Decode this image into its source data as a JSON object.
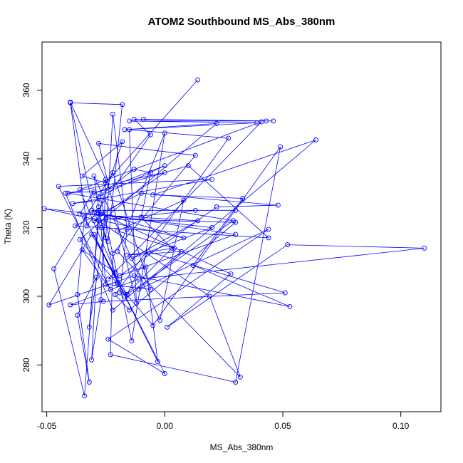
{
  "chart_data": {
    "type": "line",
    "title": "ATOM2 Southbound MS_Abs_380nm",
    "xlabel": "MS_Abs_380nm",
    "ylabel": "Theta (K)",
    "xlim": [
      -0.052,
      0.117
    ],
    "ylim": [
      266.4,
      374.0
    ],
    "x_ticks": [
      -0.05,
      0.0,
      0.05,
      0.1
    ],
    "x_tick_labels": [
      "-0.05",
      "0.00",
      "0.05",
      "0.10"
    ],
    "y_ticks": [
      280,
      300,
      320,
      340,
      360
    ],
    "y_tick_labels": [
      "280",
      "300",
      "320",
      "340",
      "360"
    ],
    "grid": false,
    "marker": "open-circle",
    "colors": {
      "series": "#0000ff",
      "frame": "#000000",
      "background": "#ffffff"
    },
    "series": [
      {
        "points": [
          [
            0.014,
            363.0
          ],
          [
            -0.025,
            333.0
          ],
          [
            -0.035,
            335.0
          ],
          [
            -0.018,
            345.0
          ],
          [
            -0.028,
            324.0
          ],
          [
            -0.02,
            304.0
          ],
          [
            -0.034,
            323.0
          ],
          [
            -0.037,
            300.5
          ],
          [
            -0.032,
            275.0
          ],
          [
            -0.037,
            294.5
          ],
          [
            -0.029,
            305.5
          ],
          [
            -0.031,
            281.5
          ],
          [
            -0.027,
            299.0
          ],
          [
            -0.025,
            334.0
          ],
          [
            -0.04,
            356.5
          ],
          [
            -0.03,
            324.5
          ],
          [
            -0.027,
            320.0
          ],
          [
            -0.025,
            303.5
          ],
          [
            -0.006,
            302.0
          ],
          [
            -0.022,
            336.0
          ],
          [
            -0.047,
            308.0
          ],
          [
            -0.034,
            271.0
          ],
          [
            -0.028,
            325.0
          ],
          [
            -0.02,
            303.5
          ],
          [
            -0.016,
            300.5
          ],
          [
            -0.019,
            301.0
          ],
          [
            -0.016,
            319.5
          ],
          [
            -0.022,
            353.0
          ],
          [
            -0.025,
            317.0
          ],
          [
            -0.024,
            316.0
          ],
          [
            -0.018,
            355.8
          ],
          [
            -0.04,
            356.3
          ],
          [
            -0.033,
            320.5
          ],
          [
            -0.006,
            347.0
          ],
          [
            -0.013,
            351.5
          ],
          [
            0.043,
            351.0
          ],
          [
            -0.009,
            351.5
          ],
          [
            0.046,
            351.0
          ],
          [
            -0.015,
            351.0
          ],
          [
            0.039,
            350.5
          ],
          [
            -0.017,
            348.5
          ],
          [
            0.022,
            350.3
          ],
          [
            -0.036,
            316.5
          ],
          [
            -0.005,
            291.5
          ],
          [
            0.049,
            343.5
          ],
          [
            0.03,
            275.0
          ],
          [
            -0.023,
            283.0
          ],
          [
            -0.022,
            312.5
          ],
          [
            0.013,
            341.0
          ],
          [
            -0.028,
            344.5
          ],
          [
            -0.012,
            298.0
          ],
          [
            -0.015,
            348.5
          ],
          [
            0.027,
            346.0
          ],
          [
            -0.021,
            300.5
          ],
          [
            -0.015,
            296.0
          ],
          [
            0.03,
            321.5
          ],
          [
            -0.025,
            322.5
          ],
          [
            -0.032,
            291.0
          ],
          [
            -0.028,
            322.0
          ],
          [
            0.019,
            300.0
          ],
          [
            0.032,
            276.5
          ],
          [
            -0.02,
            313.0
          ],
          [
            0.0,
            347.5
          ],
          [
            -0.014,
            287.0
          ],
          [
            -0.027,
            328.0
          ],
          [
            -0.039,
            327.0
          ],
          [
            0.02,
            334.0
          ],
          [
            -0.045,
            332.0
          ],
          [
            -0.023,
            302.0
          ],
          [
            -0.035,
            313.5
          ],
          [
            -0.021,
            307.0
          ],
          [
            -0.036,
            331.0
          ],
          [
            0.041,
            350.8
          ],
          [
            -0.024,
            305.0
          ],
          [
            -0.008,
            308.5
          ],
          [
            -0.003,
            281.0
          ],
          [
            -0.03,
            318.0
          ],
          [
            0.0,
            277.5
          ],
          [
            -0.024,
            287.5
          ],
          [
            0.044,
            319.5
          ],
          [
            -0.011,
            302.0
          ],
          [
            0.064,
            345.5
          ],
          [
            -0.005,
            329.5
          ],
          [
            0.033,
            328.5
          ],
          [
            0.012,
            309.0
          ],
          [
            0.053,
            297.0
          ],
          [
            -0.013,
            306.0
          ],
          [
            -0.049,
            297.5
          ],
          [
            -0.031,
            318.0
          ],
          [
            -0.016,
            300.5
          ],
          [
            -0.007,
            313.0
          ],
          [
            0.051,
            301.0
          ],
          [
            -0.026,
            298.5
          ],
          [
            -0.04,
            297.5
          ],
          [
            -0.011,
            305.0
          ],
          [
            0.11,
            314.0
          ],
          [
            0.052,
            315.0
          ],
          [
            0.001,
            291.0
          ],
          [
            0.028,
            306.5
          ],
          [
            -0.027,
            324.0
          ],
          [
            0.03,
            318.0
          ],
          [
            -0.019,
            306.0
          ],
          [
            0.022,
            326.0
          ],
          [
            0.048,
            326.5
          ],
          [
            -0.01,
            330.0
          ],
          [
            -0.038,
            320.5
          ],
          [
            0.044,
            317.0
          ],
          [
            0.01,
            338.0
          ],
          [
            -0.03,
            330.0
          ],
          [
            0.0,
            338.0
          ],
          [
            -0.028,
            329.0
          ],
          [
            -0.013,
            337.0
          ],
          [
            -0.006,
            336.0
          ],
          [
            -0.01,
            323.0
          ],
          [
            0.003,
            314.0
          ],
          [
            -0.017,
            300.0
          ],
          [
            0.029,
            322.0
          ],
          [
            -0.041,
            330.0
          ],
          [
            0.0,
            336.0
          ],
          [
            -0.03,
            322.0
          ],
          [
            0.013,
            325.0
          ],
          [
            0.03,
            325.0
          ],
          [
            -0.031,
            325.0
          ],
          [
            0.008,
            317.0
          ],
          [
            -0.051,
            325.5
          ],
          [
            0.02,
            320.0
          ],
          [
            -0.014,
            311.0
          ],
          [
            0.014,
            322.0
          ],
          [
            -0.036,
            324.0
          ],
          [
            -0.03,
            330.5
          ],
          [
            -0.042,
            330.0
          ],
          [
            -0.022,
            296.0
          ],
          [
            0.007,
            313.0
          ],
          [
            -0.016,
            312.0
          ],
          [
            0.004,
            314.0
          ],
          [
            -0.02,
            319.0
          ],
          [
            0.008,
            328.0
          ],
          [
            -0.002,
            293.0
          ],
          [
            -0.03,
            335.0
          ],
          [
            -0.028,
            326.0
          ]
        ]
      }
    ]
  }
}
